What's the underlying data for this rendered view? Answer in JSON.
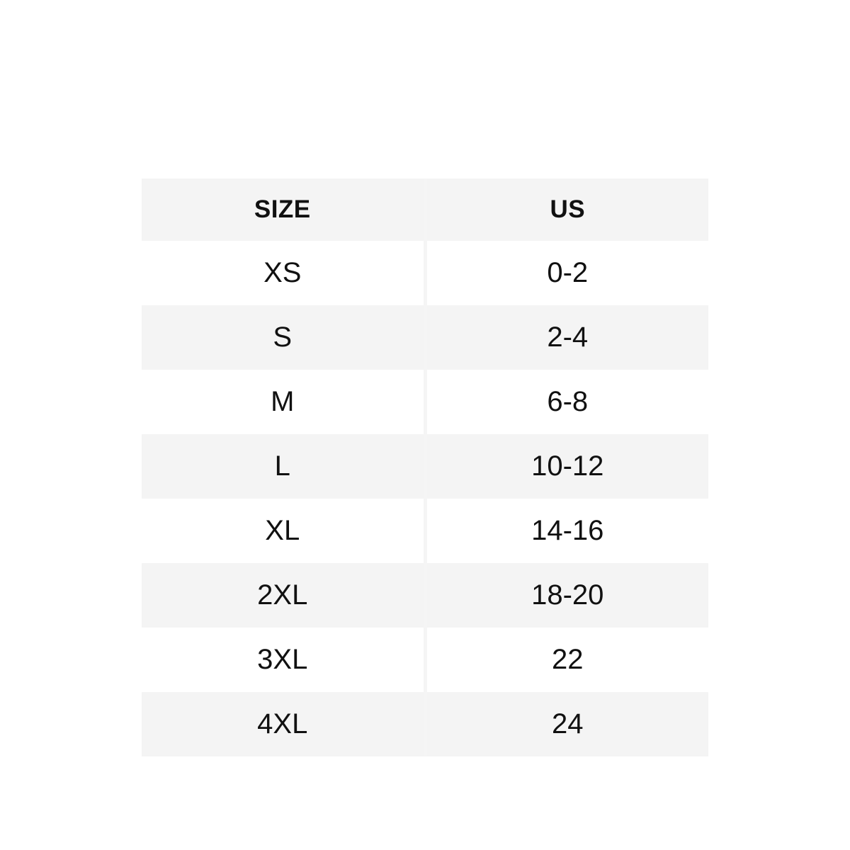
{
  "table": {
    "columns": [
      {
        "key": "size",
        "label": "SIZE"
      },
      {
        "key": "us",
        "label": "US"
      }
    ],
    "rows": [
      {
        "size": "XS",
        "us": "0-2"
      },
      {
        "size": "S",
        "us": "2-4"
      },
      {
        "size": "M",
        "us": "6-8"
      },
      {
        "size": "L",
        "us": "10-12"
      },
      {
        "size": "XL",
        "us": "14-16"
      },
      {
        "size": "2XL",
        "us": "18-20"
      },
      {
        "size": "3XL",
        "us": "22"
      },
      {
        "size": "4XL",
        "us": "24"
      }
    ]
  },
  "colors": {
    "stripe": "#f4f4f4",
    "row_white": "#ffffff",
    "divider": "#f5f5f5",
    "text": "#111111",
    "background": "#ffffff"
  }
}
